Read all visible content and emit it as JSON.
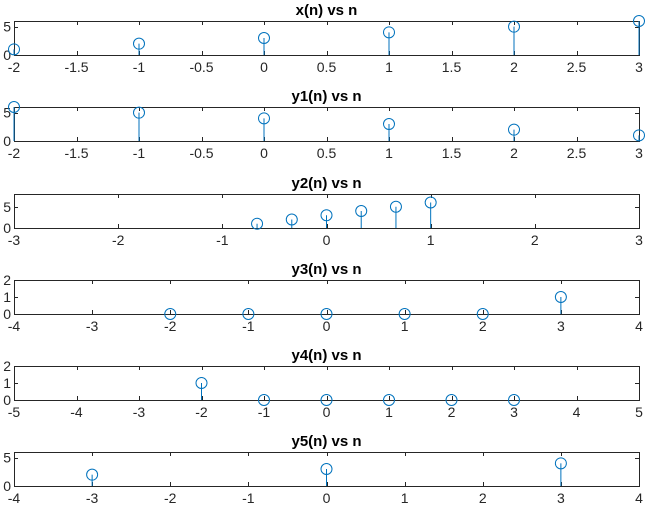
{
  "chart_data": [
    {
      "type": "stem",
      "title": "x(n) vs n",
      "xlim": [
        -2,
        3
      ],
      "ylim": [
        0,
        6
      ],
      "xticks": [
        -2,
        -1.5,
        -1,
        -0.5,
        0,
        0.5,
        1,
        1.5,
        2,
        2.5,
        3
      ],
      "yticks": [
        0,
        5
      ],
      "x": [
        -2,
        -1,
        0,
        1,
        2,
        3
      ],
      "y": [
        1,
        2,
        3,
        4,
        5,
        6
      ]
    },
    {
      "type": "stem",
      "title": "y1(n) vs n",
      "xlim": [
        -2,
        3
      ],
      "ylim": [
        0,
        6
      ],
      "xticks": [
        -2,
        -1.5,
        -1,
        -0.5,
        0,
        0.5,
        1,
        1.5,
        2,
        2.5,
        3
      ],
      "yticks": [
        0,
        5
      ],
      "x": [
        -2,
        -1,
        0,
        1,
        2,
        3
      ],
      "y": [
        6,
        5,
        4,
        3,
        2,
        1
      ]
    },
    {
      "type": "stem",
      "title": "y2(n) vs n",
      "xlim": [
        -3,
        3
      ],
      "ylim": [
        0,
        8
      ],
      "xticks": [
        -3,
        -2,
        -1,
        0,
        1,
        2,
        3
      ],
      "yticks": [
        0,
        5
      ],
      "x": [
        -0.6667,
        -0.3333,
        0,
        0.3333,
        0.6667,
        1
      ],
      "y": [
        1,
        2,
        3,
        4,
        5,
        6
      ]
    },
    {
      "type": "stem",
      "title": "y3(n) vs n",
      "xlim": [
        -4,
        4
      ],
      "ylim": [
        0,
        2
      ],
      "xticks": [
        -4,
        -3,
        -2,
        -1,
        0,
        1,
        2,
        3,
        4
      ],
      "yticks": [
        0,
        1,
        2
      ],
      "x": [
        -2,
        -1,
        0,
        1,
        2,
        3
      ],
      "y": [
        0,
        0,
        0,
        0,
        0,
        1
      ]
    },
    {
      "type": "stem",
      "title": "y4(n) vs n",
      "xlim": [
        -5,
        5
      ],
      "ylim": [
        0,
        2
      ],
      "xticks": [
        -5,
        -4,
        -3,
        -2,
        -1,
        0,
        1,
        2,
        3,
        4,
        5
      ],
      "yticks": [
        0,
        1,
        2
      ],
      "x": [
        -2,
        -1,
        0,
        1,
        2,
        3
      ],
      "y": [
        1,
        0,
        0,
        0,
        0,
        0
      ]
    },
    {
      "type": "stem",
      "title": "y5(n) vs n",
      "xlim": [
        -4,
        4
      ],
      "ylim": [
        0,
        6
      ],
      "xticks": [
        -4,
        -3,
        -2,
        -1,
        0,
        1,
        2,
        3,
        4
      ],
      "yticks": [
        0,
        5
      ],
      "x": [
        -3,
        0,
        3
      ],
      "y": [
        2,
        3,
        4
      ]
    }
  ],
  "colors": {
    "series": "#0072BD",
    "axes": "#262626",
    "background": "#ffffff"
  }
}
